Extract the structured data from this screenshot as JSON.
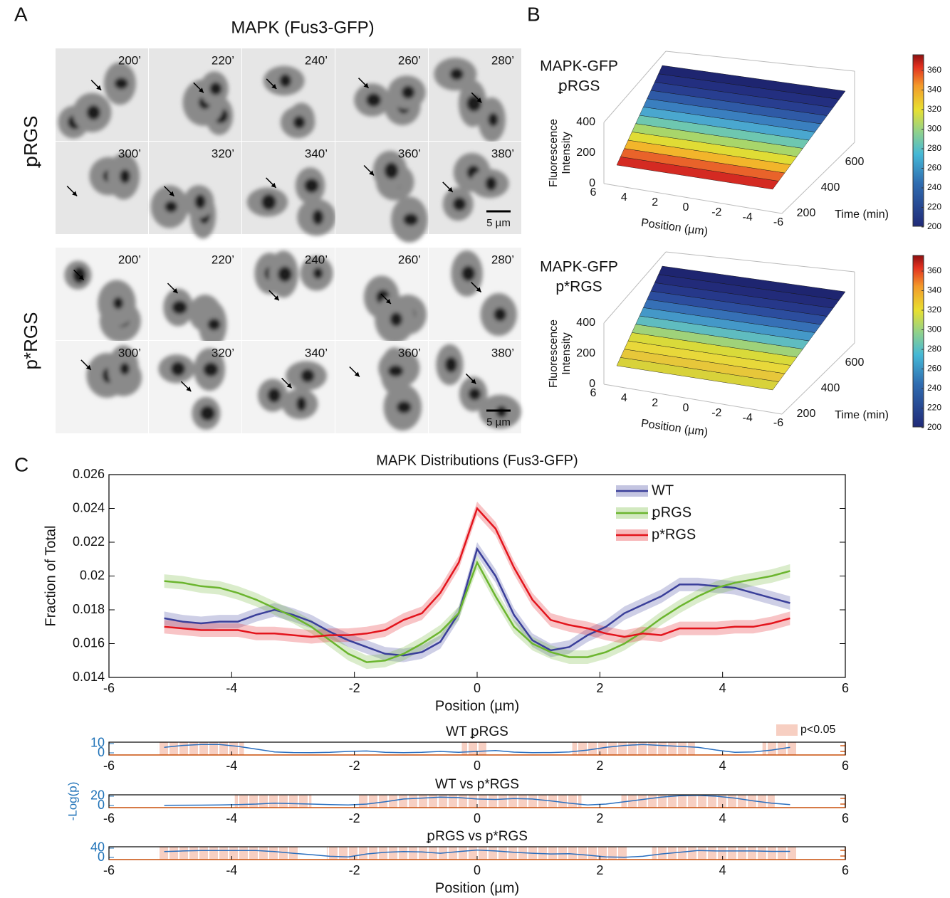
{
  "panel_labels": [
    "A",
    "B",
    "C"
  ],
  "panel_a": {
    "title": "MAPK (Fus3-GFP)",
    "rows": [
      {
        "label": "ꝑRGS",
        "times": [
          "200’",
          "220’",
          "240’",
          "260’",
          "280’",
          "300’",
          "320’",
          "340’",
          "360’",
          "380’"
        ],
        "scale_bar": "5 µm"
      },
      {
        "label": "p*RGS",
        "times": [
          "200’",
          "220’",
          "240’",
          "260’",
          "280’",
          "300’",
          "320’",
          "340’",
          "360’",
          "380’"
        ],
        "scale_bar": "5 µm"
      }
    ]
  },
  "panel_b": {
    "plots": [
      {
        "title": [
          "MAPK-GFP",
          "ꝑRGS"
        ]
      },
      {
        "title": [
          "MAPK-GFP",
          "p*RGS"
        ]
      }
    ],
    "z_label": [
      "Fluorescence",
      "Intensity"
    ],
    "z_ticks": [
      0,
      200,
      400
    ],
    "x_label": "Position (µm)",
    "x_ticks": [
      6,
      4,
      2,
      0,
      -2,
      -4,
      -6
    ],
    "y_label": "Time (min)",
    "y_ticks": [
      200,
      400,
      600
    ],
    "colorbar_ticks": [
      200,
      220,
      240,
      260,
      280,
      300,
      320,
      340,
      360
    ]
  },
  "chart_data": [
    {
      "type": "line",
      "title": "MAPK Distributions (Fus3-GFP)",
      "x_label": "Position (µm)",
      "y_label": "Fraction of Total",
      "x": [
        -5.1,
        -4.8,
        -4.5,
        -4.2,
        -3.9,
        -3.6,
        -3.3,
        -3.0,
        -2.7,
        -2.4,
        -2.1,
        -1.8,
        -1.5,
        -1.2,
        -0.9,
        -0.6,
        -0.3,
        0,
        0.3,
        0.6,
        0.9,
        1.2,
        1.5,
        1.8,
        2.1,
        2.4,
        2.7,
        3.0,
        3.3,
        3.6,
        3.9,
        4.2,
        4.5,
        4.8,
        5.1
      ],
      "series": [
        {
          "name": "WT",
          "color": "#3a3f9a",
          "error": 0.0004,
          "values": [
            0.0175,
            0.0173,
            0.0172,
            0.0173,
            0.0173,
            0.0177,
            0.018,
            0.0177,
            0.0173,
            0.0167,
            0.0162,
            0.0158,
            0.0154,
            0.0153,
            0.0155,
            0.0161,
            0.0178,
            0.0216,
            0.02,
            0.0177,
            0.0162,
            0.0156,
            0.0158,
            0.0165,
            0.017,
            0.0178,
            0.0183,
            0.0188,
            0.0195,
            0.0195,
            0.0194,
            0.0193,
            0.019,
            0.0187,
            0.0184
          ]
        },
        {
          "name": "ꝑRGS",
          "color": "#6bb52e",
          "error": 0.0004,
          "values": [
            0.0197,
            0.0196,
            0.0194,
            0.0193,
            0.019,
            0.0186,
            0.0181,
            0.0176,
            0.017,
            0.0162,
            0.0154,
            0.0149,
            0.015,
            0.0154,
            0.016,
            0.0167,
            0.0178,
            0.0208,
            0.0188,
            0.017,
            0.016,
            0.0155,
            0.0152,
            0.0152,
            0.0155,
            0.016,
            0.0167,
            0.0175,
            0.0182,
            0.0188,
            0.0193,
            0.0196,
            0.0198,
            0.02,
            0.0203
          ]
        },
        {
          "name": "p*RGS",
          "color": "#e3141c",
          "error": 0.0004,
          "values": [
            0.017,
            0.0169,
            0.0168,
            0.0168,
            0.0168,
            0.0166,
            0.0166,
            0.0165,
            0.0164,
            0.0165,
            0.0165,
            0.0166,
            0.0168,
            0.0174,
            0.0178,
            0.019,
            0.0208,
            0.024,
            0.0228,
            0.0205,
            0.0186,
            0.0174,
            0.0171,
            0.0169,
            0.0166,
            0.0164,
            0.0166,
            0.0165,
            0.0169,
            0.0169,
            0.0169,
            0.017,
            0.017,
            0.0172,
            0.0175
          ]
        }
      ],
      "xlim": [
        -6,
        6
      ],
      "xticks": [
        -6,
        -4,
        -2,
        0,
        2,
        4,
        6
      ],
      "ylim": [
        0.014,
        0.026
      ],
      "yticks": [
        0.014,
        0.016,
        0.018,
        0.02,
        0.022,
        0.024,
        0.026
      ],
      "legend": "upper right"
    },
    {
      "type": "significance",
      "title": "WT ꝑRGS",
      "legend_label": "p<0.05",
      "x": [
        -5.1,
        -4.8,
        -4.5,
        -4.2,
        -3.9,
        -3.6,
        -3.3,
        -3.0,
        -2.7,
        -2.4,
        -2.1,
        -1.8,
        -1.5,
        -1.2,
        -0.9,
        -0.6,
        -0.3,
        0,
        0.3,
        0.6,
        0.9,
        1.2,
        1.5,
        1.8,
        2.1,
        2.4,
        2.7,
        3.0,
        3.3,
        3.6,
        3.9,
        4.2,
        4.5,
        4.8,
        5.1
      ],
      "values": [
        6,
        8,
        9,
        9,
        7,
        4,
        1,
        0.3,
        0.2,
        0.5,
        1.5,
        2,
        0.5,
        0.2,
        0.5,
        1.5,
        0.5,
        1.5,
        2.5,
        0.8,
        0.2,
        0.3,
        1,
        3,
        6,
        8,
        9,
        8,
        7,
        6,
        3,
        0.5,
        1,
        3,
        6
      ],
      "color": "#2a6fbf",
      "significant_ranges": [
        [
          -5.2,
          -3.8
        ],
        [
          -0.25,
          0.15
        ],
        [
          1.55,
          3.55
        ],
        [
          4.65,
          5.2
        ]
      ],
      "xlim": [
        -6,
        6
      ],
      "xticks": [
        -6,
        -4,
        -2,
        0,
        2,
        4,
        6
      ],
      "ylim": [
        -2.3,
        11.5
      ],
      "yticks": [
        0,
        10
      ]
    },
    {
      "type": "significance",
      "title": "WT vs p*RGS",
      "y_label": "-Log(p)",
      "x": [
        -5.1,
        -4.8,
        -4.5,
        -4.2,
        -3.9,
        -3.6,
        -3.3,
        -3.0,
        -2.7,
        -2.4,
        -2.1,
        -1.8,
        -1.5,
        -1.2,
        -0.9,
        -0.6,
        -0.3,
        0,
        0.3,
        0.6,
        0.9,
        1.2,
        1.5,
        1.8,
        2.1,
        2.4,
        2.7,
        3.0,
        3.3,
        3.6,
        3.9,
        4.2,
        4.5,
        4.8,
        5.1
      ],
      "values": [
        0.5,
        0.6,
        0.8,
        1,
        2,
        3,
        5,
        4,
        3,
        2,
        1,
        3,
        8,
        14,
        16,
        18,
        17,
        14,
        13,
        15,
        14,
        10,
        5,
        1,
        3,
        8,
        13,
        18,
        21,
        22,
        20,
        16,
        10,
        5,
        2
      ],
      "color": "#2a6fbf",
      "significant_ranges": [
        [
          -3.95,
          -2.7
        ],
        [
          -1.95,
          1.7
        ],
        [
          2.35,
          4.85
        ]
      ],
      "xlim": [
        -6,
        6
      ],
      "xticks": [
        -6,
        -4,
        -2,
        0,
        2,
        4,
        6
      ],
      "ylim": [
        -4.6,
        23
      ],
      "yticks": [
        0,
        20
      ]
    },
    {
      "type": "significance",
      "title": "ꝑRGS vs p*RGS",
      "x_label": "Position (µm)",
      "x": [
        -5.1,
        -4.8,
        -4.5,
        -4.2,
        -3.9,
        -3.6,
        -3.3,
        -3.0,
        -2.7,
        -2.4,
        -2.1,
        -1.8,
        -1.5,
        -1.2,
        -0.9,
        -0.6,
        -0.3,
        0,
        0.3,
        0.6,
        0.9,
        1.2,
        1.5,
        1.8,
        2.1,
        2.4,
        2.7,
        3.0,
        3.3,
        3.6,
        3.9,
        4.2,
        4.5,
        4.8,
        5.1
      ],
      "values": [
        25,
        28,
        30,
        30,
        30,
        30,
        25,
        18,
        12,
        5,
        2,
        15,
        22,
        25,
        24,
        18,
        25,
        32,
        28,
        22,
        18,
        15,
        16,
        10,
        2,
        1,
        5,
        15,
        22,
        30,
        28,
        28,
        28,
        26,
        26
      ],
      "color": "#2a6fbf",
      "significant_ranges": [
        [
          -5.2,
          -2.9
        ],
        [
          -2.45,
          2.45
        ],
        [
          2.85,
          5.2
        ]
      ],
      "xlim": [
        -6,
        6
      ],
      "xticks": [
        -6,
        -4,
        -2,
        0,
        2,
        4,
        6
      ],
      "ylim": [
        -9.2,
        46
      ],
      "yticks": [
        0,
        40
      ]
    }
  ]
}
